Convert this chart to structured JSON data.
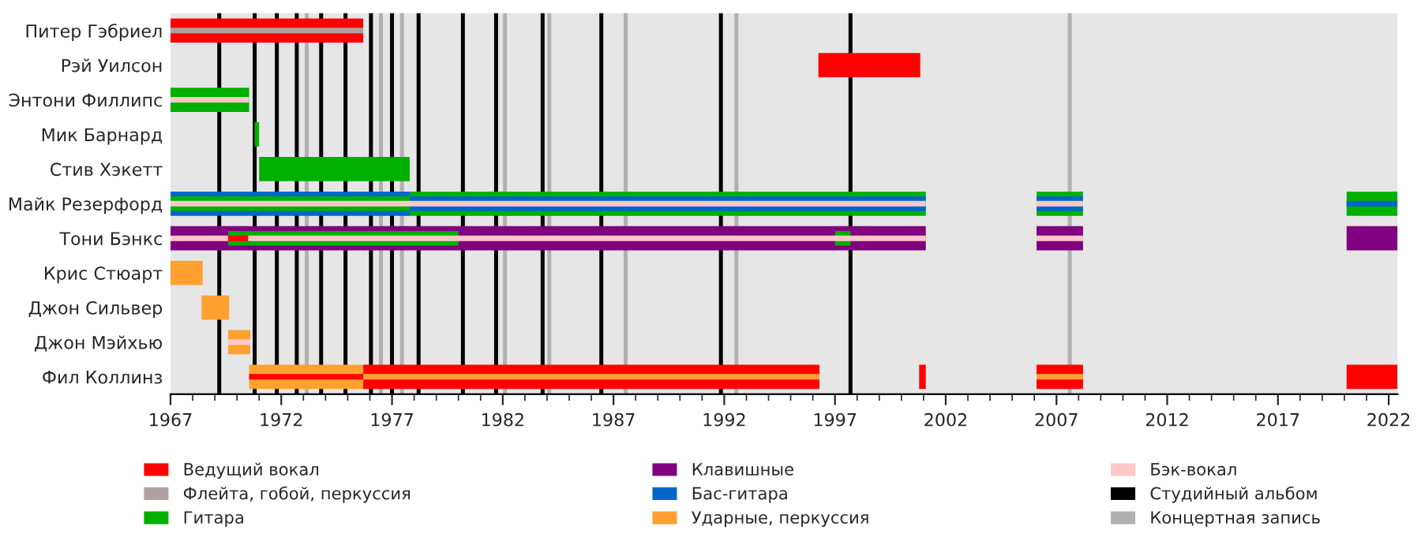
{
  "chart_data": {
    "type": "bar",
    "orientation": "horizontal",
    "categories": [
      "Питер Гэбриел",
      "Рэй Уилсон",
      "Энтони Филлипс",
      "Мик Барнард",
      "Стив Хэкетт",
      "Майк Резерфорд",
      "Тони Бэнкс",
      "Крис Стюарт",
      "Джон Сильвер",
      "Джон Мэйхью",
      "Фил Коллинз"
    ],
    "series": [
      {
        "name": "Ведущий вокал",
        "color": "#ff0000",
        "base": [
          1967,
          1996.25,
          null,
          null,
          null,
          null,
          null,
          null,
          null,
          null,
          1975.7
        ],
        "values": [
          8.7,
          4.6,
          null,
          null,
          null,
          null,
          null,
          null,
          null,
          null,
          20.6
        ]
      },
      {
        "color": "#ff0000",
        "base": [
          null,
          null,
          null,
          null,
          null,
          null,
          null,
          null,
          null,
          null,
          2000.8
        ],
        "values": [
          null,
          null,
          null,
          null,
          null,
          null,
          null,
          null,
          null,
          null,
          0.3
        ]
      },
      {
        "color": "#ff0000",
        "base": [
          null,
          null,
          null,
          null,
          null,
          null,
          null,
          null,
          null,
          null,
          2006.1
        ],
        "values": [
          null,
          null,
          null,
          null,
          null,
          null,
          null,
          null,
          null,
          null,
          2.1
        ]
      },
      {
        "color": "#ff0000",
        "base": [
          null,
          null,
          null,
          null,
          null,
          null,
          null,
          null,
          null,
          null,
          2020.1
        ],
        "values": [
          null,
          null,
          null,
          null,
          null,
          null,
          null,
          null,
          null,
          null,
          2.3
        ]
      },
      {
        "name": "Флейта, гобой, перкуссия",
        "color": "#b0a0a0",
        "base": [
          1967,
          null,
          null,
          null,
          null,
          null,
          null,
          null,
          null,
          null,
          null
        ],
        "values": [
          8.7,
          null,
          null,
          null,
          null,
          null,
          null,
          null,
          null,
          null,
          null
        ]
      },
      {
        "name": "Гитара",
        "color": "#00b000",
        "base": [
          null,
          null,
          1967,
          1970.8,
          1971,
          1977.8,
          null,
          null,
          null,
          null,
          null
        ],
        "values": [
          null,
          null,
          3.55,
          0.2,
          6.8,
          23.3,
          null,
          null,
          null,
          null,
          null
        ]
      },
      {
        "color": "#00b000",
        "base": [
          null,
          null,
          null,
          null,
          null,
          2006.1,
          null,
          null,
          null,
          null,
          null
        ],
        "values": [
          null,
          null,
          null,
          null,
          null,
          2.1,
          null,
          null,
          null,
          null,
          null
        ]
      },
      {
        "color": "#00b000",
        "base": [
          null,
          null,
          null,
          null,
          null,
          2020.1,
          null,
          null,
          null,
          null,
          null
        ],
        "values": [
          null,
          null,
          null,
          null,
          null,
          2.3,
          null,
          null,
          null,
          null,
          null
        ]
      },
      {
        "name": "Клавишные",
        "color": "#800080",
        "base": [
          null,
          null,
          null,
          null,
          null,
          null,
          1967,
          null,
          null,
          null,
          null
        ],
        "values": [
          null,
          null,
          null,
          null,
          null,
          null,
          34.1,
          null,
          null,
          null,
          null
        ]
      },
      {
        "color": "#800080",
        "base": [
          null,
          null,
          null,
          null,
          null,
          null,
          2006.1,
          null,
          null,
          null,
          null
        ],
        "values": [
          null,
          null,
          null,
          null,
          null,
          null,
          2.1,
          null,
          null,
          null,
          null
        ]
      },
      {
        "color": "#800080",
        "base": [
          null,
          null,
          null,
          null,
          null,
          null,
          2020.1,
          null,
          null,
          null,
          null
        ],
        "values": [
          null,
          null,
          null,
          null,
          null,
          null,
          2.3,
          null,
          null,
          null,
          null
        ]
      },
      {
        "color": "#00b000",
        "base": [
          null,
          null,
          null,
          null,
          null,
          null,
          1969.6,
          null,
          null,
          null,
          null
        ],
        "values": [
          null,
          null,
          null,
          null,
          null,
          null,
          10.4,
          null,
          null,
          null,
          null
        ]
      },
      {
        "color": "#00b000",
        "base": [
          null,
          null,
          null,
          null,
          null,
          null,
          1997.0,
          null,
          null,
          null,
          null
        ],
        "values": [
          null,
          null,
          null,
          null,
          null,
          null,
          0.7,
          null,
          null,
          null,
          null
        ]
      },
      {
        "name": "Бас-гитара",
        "color": "#0066cc",
        "base": [
          null,
          null,
          null,
          null,
          null,
          1967,
          null,
          null,
          null,
          null,
          null
        ],
        "values": [
          null,
          null,
          null,
          null,
          null,
          10.8,
          null,
          null,
          null,
          null,
          null
        ]
      },
      {
        "color": "#00b000",
        "base": [
          null,
          null,
          null,
          null,
          null,
          1967,
          null,
          null,
          null,
          null,
          null
        ],
        "values": [
          null,
          null,
          null,
          null,
          null,
          10.8,
          null,
          null,
          null,
          null,
          null
        ]
      },
      {
        "color": "#0066cc",
        "base": [
          null,
          null,
          null,
          null,
          null,
          1977.8,
          null,
          null,
          null,
          null,
          null
        ],
        "values": [
          null,
          null,
          null,
          null,
          null,
          23.3,
          null,
          null,
          null,
          null,
          null
        ]
      },
      {
        "color": "#0066cc",
        "base": [
          null,
          null,
          null,
          null,
          null,
          2006.1,
          null,
          null,
          null,
          null,
          null
        ],
        "values": [
          null,
          null,
          null,
          null,
          null,
          2.1,
          null,
          null,
          null,
          null,
          null
        ]
      },
      {
        "color": "#0066cc",
        "base": [
          null,
          null,
          null,
          null,
          null,
          2020.1,
          null,
          null,
          null,
          null,
          null
        ],
        "values": [
          null,
          null,
          null,
          null,
          null,
          2.3,
          null,
          null,
          null,
          null,
          null
        ]
      },
      {
        "name": "Ударные, перкуссия",
        "color": "#ffa030",
        "base": [
          null,
          null,
          null,
          null,
          null,
          null,
          null,
          1967,
          1968.4,
          1969.6,
          1970.55
        ],
        "values": [
          null,
          null,
          null,
          null,
          null,
          null,
          null,
          1.45,
          1.25,
          1.0,
          5.15
        ]
      },
      {
        "color": "#ffa030",
        "base": [
          null,
          null,
          null,
          null,
          null,
          null,
          null,
          null,
          null,
          null,
          1975.7
        ],
        "values": [
          null,
          null,
          null,
          null,
          null,
          null,
          null,
          null,
          null,
          null,
          20.6
        ]
      },
      {
        "color": "#ffa030",
        "base": [
          null,
          null,
          null,
          null,
          null,
          null,
          null,
          null,
          null,
          null,
          2006.1
        ],
        "values": [
          null,
          null,
          null,
          null,
          null,
          null,
          null,
          null,
          null,
          null,
          2.1
        ]
      },
      {
        "name": "Бэк-вокал",
        "color": "#ffc8c8",
        "base": [
          null,
          null,
          1967,
          null,
          null,
          1967,
          1967,
          null,
          null,
          1969.6,
          null
        ],
        "values": [
          null,
          null,
          3.55,
          null,
          null,
          34.1,
          2.6,
          null,
          null,
          1.0,
          null
        ]
      },
      {
        "color": "#ffc8c8",
        "base": [
          null,
          null,
          null,
          null,
          null,
          null,
          1970.5,
          null,
          null,
          null,
          null
        ],
        "values": [
          null,
          null,
          null,
          null,
          null,
          null,
          30.6,
          null,
          null,
          null,
          null
        ]
      },
      {
        "color": "#ffc8c8",
        "base": [
          null,
          null,
          null,
          null,
          null,
          2006.1,
          2006.1,
          null,
          null,
          null,
          null
        ],
        "values": [
          null,
          null,
          null,
          null,
          null,
          2.1,
          2.1,
          null,
          null,
          null,
          null
        ]
      },
      {
        "color": "#ff0000",
        "base": [
          null,
          null,
          null,
          null,
          null,
          null,
          1969.6,
          null,
          null,
          null,
          1970.55
        ],
        "values": [
          null,
          null,
          null,
          null,
          null,
          null,
          0.9,
          null,
          null,
          null,
          5.15
        ]
      }
    ],
    "ref_lines": [
      {
        "axis": "x",
        "value": 1969.2,
        "color": "#000000",
        "label": "Студийный альбом"
      },
      {
        "axis": "x",
        "value": 1970.8,
        "color": "#000000"
      },
      {
        "axis": "x",
        "value": 1971.8,
        "color": "#000000"
      },
      {
        "axis": "x",
        "value": 1972.7,
        "color": "#000000"
      },
      {
        "axis": "x",
        "value": 1973.8,
        "color": "#000000"
      },
      {
        "axis": "x",
        "value": 1974.9,
        "color": "#000000"
      },
      {
        "axis": "x",
        "value": 1976.05,
        "color": "#000000"
      },
      {
        "axis": "x",
        "value": 1977.0,
        "color": "#000000"
      },
      {
        "axis": "x",
        "value": 1978.2,
        "color": "#000000"
      },
      {
        "axis": "x",
        "value": 1980.2,
        "color": "#000000"
      },
      {
        "axis": "x",
        "value": 1981.7,
        "color": "#000000"
      },
      {
        "axis": "x",
        "value": 1983.8,
        "color": "#000000"
      },
      {
        "axis": "x",
        "value": 1986.45,
        "color": "#000000"
      },
      {
        "axis": "x",
        "value": 1991.85,
        "color": "#000000"
      },
      {
        "axis": "x",
        "value": 1997.7,
        "color": "#000000"
      },
      {
        "axis": "x",
        "value": 1973.15,
        "color": "#b0b0b0",
        "label": "Концертная запись"
      },
      {
        "axis": "x",
        "value": 1976.5,
        "color": "#b0b0b0"
      },
      {
        "axis": "x",
        "value": 1977.45,
        "color": "#b0b0b0"
      },
      {
        "axis": "x",
        "value": 1982.1,
        "color": "#b0b0b0"
      },
      {
        "axis": "x",
        "value": 1984.1,
        "color": "#b0b0b0"
      },
      {
        "axis": "x",
        "value": 1987.55,
        "color": "#b0b0b0"
      },
      {
        "axis": "x",
        "value": 1992.55,
        "color": "#b0b0b0"
      },
      {
        "axis": "x",
        "value": 2007.6,
        "color": "#b0b0b0"
      }
    ],
    "xlim": [
      1967,
      2022.4
    ],
    "xticks": [
      1967,
      {
        "value": 1968,
        "label": null
      },
      {
        "value": 1969,
        "label": null
      },
      {
        "value": 1970,
        "label": null
      },
      {
        "value": 1971,
        "label": null
      },
      1972,
      {
        "value": 1973,
        "label": null
      },
      {
        "value": 1974,
        "label": null
      },
      {
        "value": 1975,
        "label": null
      },
      {
        "value": 1976,
        "label": null
      },
      1977,
      {
        "value": 1978,
        "label": null
      },
      {
        "value": 1979,
        "label": null
      },
      {
        "value": 1980,
        "label": null
      },
      {
        "value": 1981,
        "label": null
      },
      1982,
      {
        "value": 1983,
        "label": null
      },
      {
        "value": 1984,
        "label": null
      },
      {
        "value": 1985,
        "label": null
      },
      {
        "value": 1986,
        "label": null
      },
      1987,
      {
        "value": 1988,
        "label": null
      },
      {
        "value": 1989,
        "label": null
      },
      {
        "value": 1990,
        "label": null
      },
      {
        "value": 1991,
        "label": null
      },
      1992,
      {
        "value": 1993,
        "label": null
      },
      {
        "value": 1994,
        "label": null
      },
      {
        "value": 1995,
        "label": null
      },
      {
        "value": 1996,
        "label": null
      },
      1997,
      {
        "value": 1998,
        "label": null
      },
      {
        "value": 1999,
        "label": null
      },
      {
        "value": 2000,
        "label": null
      },
      {
        "value": 2001,
        "label": null
      },
      2002,
      {
        "value": 2003,
        "label": null
      },
      {
        "value": 2004,
        "label": null
      },
      {
        "value": 2005,
        "label": null
      },
      {
        "value": 2006,
        "label": null
      },
      2007,
      {
        "value": 2008,
        "label": null
      },
      {
        "value": 2009,
        "label": null
      },
      {
        "value": 2010,
        "label": null
      },
      {
        "value": 2011,
        "label": null
      },
      2012,
      {
        "value": 2013,
        "label": null
      },
      {
        "value": 2014,
        "label": null
      },
      {
        "value": 2015,
        "label": null
      },
      {
        "value": 2016,
        "label": null
      },
      2017,
      {
        "value": 2018,
        "label": null
      },
      {
        "value": 2019,
        "label": null
      },
      {
        "value": 2020,
        "label": null
      },
      {
        "value": 2021,
        "label": null
      },
      2022
    ],
    "grid": false,
    "legend": "bottom"
  }
}
